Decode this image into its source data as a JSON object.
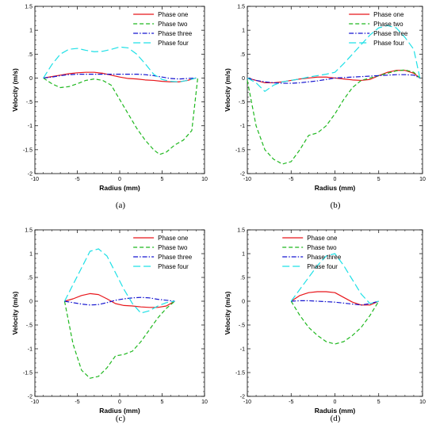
{
  "chart_data": [
    {
      "type": "line",
      "panel_label": "(a)",
      "xlabel": "Radius (mm)",
      "ylabel": "Velocity (m/s)",
      "xlim": [
        -10,
        10
      ],
      "ylim": [
        -2,
        1.5
      ],
      "xticks": [
        -10,
        -5,
        0,
        5,
        10
      ],
      "yticks": [
        -2,
        -1.5,
        -1,
        -0.5,
        0,
        0.5,
        1,
        1.5
      ],
      "legend": "top-right",
      "series": [
        {
          "name": "Phase one",
          "color": "#e8161b",
          "dash": "solid",
          "x": [
            -9,
            -8,
            -7,
            -6,
            -5,
            -4,
            -3,
            -2,
            -1,
            0,
            1,
            2,
            3,
            4,
            5,
            6,
            7,
            8,
            9
          ],
          "y": [
            0,
            0.03,
            0.06,
            0.09,
            0.11,
            0.12,
            0.12,
            0.1,
            0.06,
            0.02,
            -0.01,
            -0.02,
            -0.04,
            -0.05,
            -0.07,
            -0.08,
            -0.08,
            -0.05,
            0
          ]
        },
        {
          "name": "Phase two",
          "color": "#1fb81f",
          "dash": "dashed",
          "x": [
            -9,
            -8,
            -7,
            -6,
            -5,
            -4,
            -3,
            -2,
            -1,
            0,
            1,
            2,
            3,
            4,
            4.7,
            5.5,
            6.5,
            7.5,
            8.5,
            9.2
          ],
          "y": [
            0,
            -0.12,
            -0.2,
            -0.18,
            -0.12,
            -0.05,
            -0.02,
            -0.05,
            -0.15,
            -0.45,
            -0.75,
            -1.05,
            -1.3,
            -1.5,
            -1.6,
            -1.55,
            -1.4,
            -1.3,
            -1.1,
            0
          ]
        },
        {
          "name": "Phase three",
          "color": "#1515d0",
          "dash": "dashdot",
          "x": [
            -9,
            -8,
            -7,
            -6,
            -5,
            -4,
            -3,
            -2,
            -1,
            0,
            1,
            2,
            3,
            4,
            5,
            6,
            7,
            8,
            9
          ],
          "y": [
            0,
            0.02,
            0.05,
            0.07,
            0.08,
            0.08,
            0.08,
            0.08,
            0.08,
            0.08,
            0.08,
            0.08,
            0.07,
            0.05,
            0.02,
            -0.01,
            -0.02,
            -0.01,
            0
          ]
        },
        {
          "name": "Phase four",
          "color": "#1ee0e6",
          "dash": "longdash",
          "x": [
            -9,
            -8,
            -7,
            -6,
            -5,
            -4,
            -3,
            -2,
            -1,
            0,
            1,
            2,
            3,
            4,
            5,
            6,
            7,
            8,
            9
          ],
          "y": [
            0,
            0.28,
            0.5,
            0.6,
            0.62,
            0.58,
            0.55,
            0.56,
            0.6,
            0.65,
            0.63,
            0.5,
            0.3,
            0.08,
            -0.03,
            -0.07,
            -0.08,
            -0.05,
            0
          ]
        }
      ]
    },
    {
      "type": "line",
      "panel_label": "(b)",
      "xlabel": "Radius (mm)",
      "ylabel": "Velocity (m/s)",
      "xlim": [
        -10,
        10
      ],
      "ylim": [
        -2,
        1.5
      ],
      "xticks": [
        -10,
        -5,
        0,
        5,
        10
      ],
      "yticks": [
        -2,
        -1.5,
        -1,
        -0.5,
        0,
        0.5,
        1,
        1.5
      ],
      "legend": "top-right",
      "series": [
        {
          "name": "Phase one",
          "color": "#e8161b",
          "dash": "solid",
          "x": [
            -10,
            -9,
            -8,
            -7,
            -6,
            -5,
            -4,
            -3,
            -2,
            -1,
            0,
            1,
            2,
            3,
            4,
            5,
            6,
            7,
            8,
            9,
            9.7
          ],
          "y": [
            0,
            -0.05,
            -0.1,
            -0.1,
            -0.08,
            -0.05,
            -0.02,
            0,
            0.02,
            0.02,
            0,
            -0.02,
            -0.04,
            -0.05,
            -0.03,
            0.05,
            0.12,
            0.16,
            0.16,
            0.1,
            0
          ]
        },
        {
          "name": "Phase two",
          "color": "#1fb81f",
          "dash": "dashed",
          "x": [
            -10,
            -9,
            -8,
            -7,
            -6,
            -5,
            -4,
            -3,
            -2,
            -1,
            0,
            1,
            2,
            3,
            4,
            5,
            6,
            7,
            8,
            9,
            9.7
          ],
          "y": [
            -0.05,
            -1.0,
            -1.5,
            -1.7,
            -1.8,
            -1.75,
            -1.5,
            -1.2,
            -1.15,
            -1.0,
            -0.75,
            -0.45,
            -0.2,
            -0.05,
            0,
            0.05,
            0.1,
            0.15,
            0.17,
            0.12,
            0
          ]
        },
        {
          "name": "Phase three",
          "color": "#1515d0",
          "dash": "dashdot",
          "x": [
            -10,
            -9,
            -8,
            -7,
            -6,
            -5,
            -4,
            -3,
            -2,
            -1,
            0,
            1,
            2,
            3,
            4,
            5,
            6,
            7,
            8,
            9,
            9.7
          ],
          "y": [
            0,
            -0.05,
            -0.08,
            -0.1,
            -0.11,
            -0.11,
            -0.1,
            -0.08,
            -0.06,
            -0.03,
            0,
            0.01,
            0.02,
            0.03,
            0.04,
            0.05,
            0.06,
            0.07,
            0.07,
            0.06,
            0
          ]
        },
        {
          "name": "Phase four",
          "color": "#1ee0e6",
          "dash": "longdash",
          "x": [
            -10,
            -9,
            -8,
            -7,
            -6,
            -5,
            -4,
            -3,
            -2,
            -1,
            0,
            1,
            2,
            3,
            4,
            5,
            6,
            7,
            8,
            9,
            9.7
          ],
          "y": [
            0,
            -0.1,
            -0.28,
            -0.15,
            -0.08,
            -0.05,
            -0.02,
            0.02,
            0.05,
            0.08,
            0.12,
            0.3,
            0.5,
            0.7,
            0.9,
            1.05,
            1.1,
            1.05,
            0.85,
            0.6,
            0
          ]
        }
      ]
    },
    {
      "type": "line",
      "panel_label": "(c)",
      "xlabel": "Radius (mm)",
      "ylabel": "Velocity (m/s)",
      "xlim": [
        -10,
        10
      ],
      "ylim": [
        -2,
        1.5
      ],
      "xticks": [
        -10,
        -5,
        0,
        5,
        10
      ],
      "yticks": [
        -2,
        -1.5,
        -1,
        -0.5,
        0,
        0.5,
        1,
        1.5
      ],
      "legend": "top-right",
      "series": [
        {
          "name": "Phase one",
          "color": "#e8161b",
          "dash": "solid",
          "x": [
            -6.5,
            -5.5,
            -4.5,
            -3.5,
            -2.5,
            -1.5,
            -0.5,
            0.5,
            1.5,
            2.5,
            3.5,
            4.5,
            5.5,
            6.5
          ],
          "y": [
            0,
            0.05,
            0.12,
            0.16,
            0.14,
            0.05,
            -0.05,
            -0.09,
            -0.1,
            -0.12,
            -0.13,
            -0.13,
            -0.1,
            0
          ]
        },
        {
          "name": "Phase two",
          "color": "#1fb81f",
          "dash": "dashed",
          "x": [
            -6.5,
            -5.5,
            -4.5,
            -3.5,
            -2.5,
            -1.5,
            -0.5,
            0.5,
            1.5,
            2.5,
            3.5,
            4.5,
            5.5,
            6.5
          ],
          "y": [
            0,
            -0.9,
            -1.45,
            -1.62,
            -1.58,
            -1.4,
            -1.15,
            -1.12,
            -1.05,
            -0.85,
            -0.6,
            -0.35,
            -0.15,
            0
          ]
        },
        {
          "name": "Phase three",
          "color": "#1515d0",
          "dash": "dashdot",
          "x": [
            -6.5,
            -5.5,
            -4.5,
            -3.5,
            -2.5,
            -1.5,
            -0.5,
            0.5,
            1.5,
            2.5,
            3.5,
            4.5,
            5.5,
            6.5
          ],
          "y": [
            0,
            -0.03,
            -0.06,
            -0.08,
            -0.07,
            -0.03,
            0.02,
            0.05,
            0.07,
            0.08,
            0.07,
            0.04,
            0.02,
            0
          ]
        },
        {
          "name": "Phase four",
          "color": "#1ee0e6",
          "dash": "longdash",
          "x": [
            -6.5,
            -5.5,
            -4.5,
            -3.5,
            -2.5,
            -1.5,
            -0.5,
            0.5,
            1.5,
            2.5,
            3.5,
            4.5,
            5.5,
            6.5
          ],
          "y": [
            0,
            0.35,
            0.7,
            1.05,
            1.1,
            0.95,
            0.6,
            0.25,
            -0.05,
            -0.25,
            -0.2,
            -0.1,
            -0.03,
            0
          ]
        }
      ]
    },
    {
      "type": "line",
      "panel_label": "(d)",
      "xlabel": "Raduis (mm)",
      "ylabel": "Velocity (m/s)",
      "xlim": [
        -10,
        10
      ],
      "ylim": [
        -2,
        1.5
      ],
      "xticks": [
        -10,
        -5,
        0,
        5,
        10
      ],
      "yticks": [
        -2,
        -1.5,
        -1,
        -0.5,
        0,
        0.5,
        1,
        1.5
      ],
      "legend": "top-left",
      "series": [
        {
          "name": "Phase one",
          "color": "#e8161b",
          "dash": "solid",
          "x": [
            -5,
            -4,
            -3,
            -2,
            -1,
            0,
            1,
            2,
            3,
            4,
            5
          ],
          "y": [
            0,
            0.12,
            0.18,
            0.2,
            0.2,
            0.18,
            0.08,
            -0.02,
            -0.08,
            -0.08,
            0
          ]
        },
        {
          "name": "Phase two",
          "color": "#1fb81f",
          "dash": "dashed",
          "x": [
            -5,
            -4,
            -3,
            -2,
            -1,
            0,
            1,
            2,
            3,
            4,
            5
          ],
          "y": [
            0,
            -0.3,
            -0.55,
            -0.72,
            -0.85,
            -0.9,
            -0.85,
            -0.72,
            -0.55,
            -0.3,
            0
          ]
        },
        {
          "name": "Phase three",
          "color": "#1515d0",
          "dash": "dashdot",
          "x": [
            -5,
            -4,
            -3,
            -2,
            -1,
            0,
            1,
            2,
            3,
            4,
            5
          ],
          "y": [
            0,
            0.01,
            0.01,
            0,
            -0.01,
            -0.02,
            -0.04,
            -0.06,
            -0.08,
            -0.05,
            0
          ]
        },
        {
          "name": "Phase four",
          "color": "#1ee0e6",
          "dash": "longdash",
          "x": [
            -5,
            -4,
            -3,
            -2,
            -1,
            0,
            1,
            2,
            3,
            4,
            5
          ],
          "y": [
            0,
            0.25,
            0.5,
            0.75,
            0.95,
            1.0,
            0.75,
            0.45,
            0.15,
            -0.05,
            0
          ]
        }
      ]
    }
  ]
}
